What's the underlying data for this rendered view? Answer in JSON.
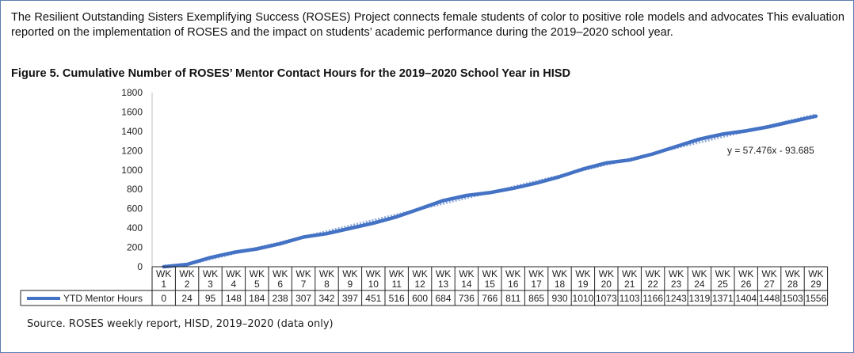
{
  "intro_text": "The Resilient Outstanding Sisters Exemplifying Success (ROSES) Project connects female students of color to positive role models and advocates This evaluation reported on the implementation of ROSES and the impact on students’ academic performance during the 2019–2020 school year.",
  "source_text": "Source. ROSES weekly report, HISD, 2019–2020 (data only)",
  "colors": {
    "series": "#4472c4",
    "trend": "#8eaadb",
    "table_border": "#222222",
    "axis": "#bfbfbf"
  },
  "chart_data": {
    "type": "line",
    "title": "Figure 5. Cumulative Number of ROSES’ Mentor Contact Hours for the 2019–2020 School Year in HISD",
    "categories": [
      "WK 1",
      "WK 2",
      "WK 3",
      "WK 4",
      "WK 5",
      "WK 6",
      "WK 7",
      "WK 8",
      "WK 9",
      "WK 10",
      "WK 11",
      "WK 12",
      "WK 13",
      "WK 14",
      "WK 15",
      "WK 16",
      "WK 17",
      "WK 18",
      "WK 19",
      "WK 20",
      "WK 21",
      "WK 22",
      "WK 23",
      "WK 24",
      "WK 25",
      "WK 26",
      "WK 27",
      "WK 28",
      "WK 29"
    ],
    "series": [
      {
        "name": "YTD Mentor Hours",
        "values": [
          0,
          24,
          95,
          148,
          184,
          238,
          307,
          342,
          397,
          451,
          516,
          600,
          684,
          736,
          766,
          811,
          865,
          930,
          1010,
          1073,
          1103,
          1166,
          1243,
          1319,
          1371,
          1404,
          1448,
          1503,
          1556
        ]
      }
    ],
    "trendline": {
      "label": "y = 57.476x - 93.685",
      "slope": 57.476,
      "intercept": -93.685
    },
    "ylim": [
      0,
      1800
    ],
    "yticks": [
      0,
      200,
      400,
      600,
      800,
      1000,
      1200,
      1400,
      1600,
      1800
    ],
    "xlabel": "",
    "ylabel": "",
    "data_table": true
  }
}
